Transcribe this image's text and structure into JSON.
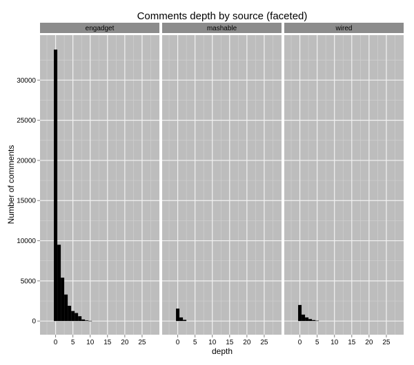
{
  "chart_data": {
    "type": "bar",
    "title": "Comments depth by source (faceted)",
    "xlabel": "depth",
    "ylabel": "Number of comments",
    "xlim": [
      -4.5,
      30
    ],
    "ylim": [
      -1700,
      35600
    ],
    "x_ticks": [
      0,
      5,
      10,
      15,
      20,
      25
    ],
    "y_ticks": [
      0,
      5000,
      10000,
      15000,
      20000,
      25000,
      30000
    ],
    "x_tick_labels": [
      "0",
      "5",
      "10",
      "15",
      "20",
      "25"
    ],
    "y_tick_labels": [
      "0",
      "5000",
      "10000",
      "15000",
      "20000",
      "25000",
      "30000"
    ],
    "bin_width": 1,
    "grid": true,
    "colors": {
      "panel_bg": "#bdbdbd",
      "strip_bg": "#8c8c8c",
      "grid_major": "#f2f2f2",
      "grid_minor": "#d2d2d2",
      "bar": "#000000"
    },
    "facets": [
      {
        "name": "engadget",
        "bins": [
          0,
          1,
          2,
          3,
          4,
          5,
          6,
          7,
          8,
          9,
          10
        ],
        "values": [
          33800,
          9500,
          5400,
          3300,
          1900,
          1250,
          1000,
          600,
          200,
          80,
          30
        ]
      },
      {
        "name": "mashable",
        "bins": [
          0,
          1,
          2
        ],
        "values": [
          1550,
          450,
          150
        ]
      },
      {
        "name": "wired",
        "bins": [
          0,
          1,
          2,
          3,
          4,
          5
        ],
        "values": [
          2000,
          800,
          450,
          250,
          120,
          50
        ]
      }
    ]
  }
}
